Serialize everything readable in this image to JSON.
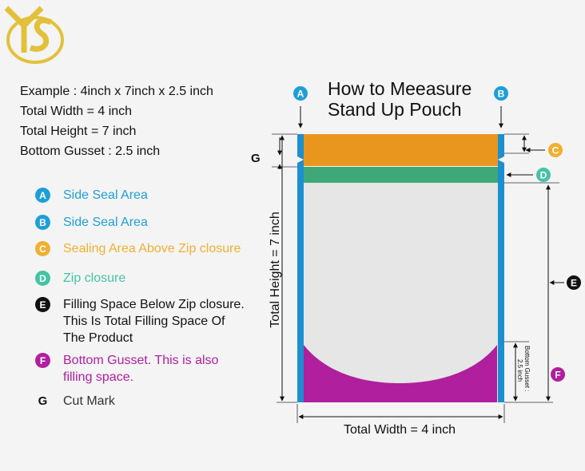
{
  "brand": {
    "logo_letters": "YS"
  },
  "title": "How to Meeasure\nStand Up Pouch",
  "example": {
    "lines": [
      "Example : 4inch x 7inch x 2.5 inch",
      "Total Width = 4 inch",
      "Total Height = 7 inch",
      "Bottom Gusset : 2.5 inch"
    ]
  },
  "legend": [
    {
      "letter": "A",
      "text": "Side Seal Area",
      "color": "#1e9fd6"
    },
    {
      "letter": "B",
      "text": "Side Seal Area",
      "color": "#1e9fd6"
    },
    {
      "letter": "C",
      "text": "Sealing Area Above Zip closure",
      "color": "#f0b030"
    },
    {
      "letter": "D",
      "text": "Zip closure",
      "color": "#44c4a4"
    },
    {
      "letter": "E",
      "text": "Filling Space Below Zip closure.\nThis Is Total Filling Space Of\nThe Product",
      "color": "#111111"
    },
    {
      "letter": "F",
      "text": "Bottom Gusset. This is also\nfilling space.",
      "color": "#b01f9e"
    },
    {
      "letter": "G",
      "text": "Cut Mark",
      "color": "#111111"
    }
  ],
  "diagram": {
    "total_height_label": "Total Height = 7 inch",
    "total_width_label": "Total Width = 4 inch",
    "gusset_label_line1": "Bottom Gusset :",
    "gusset_label_line2": "2.5 inch",
    "cut_mark_label": "G",
    "callouts": {
      "A": {
        "letter": "A",
        "color": "#1e9fd6"
      },
      "B": {
        "letter": "B",
        "color": "#1e9fd6"
      },
      "C": {
        "letter": "C",
        "color": "#f0b030"
      },
      "D": {
        "letter": "D",
        "color": "#44c4a4"
      },
      "E": {
        "letter": "E",
        "color": "#111111"
      },
      "F": {
        "letter": "F",
        "color": "#b01f9e"
      }
    },
    "colors": {
      "side_seal": "#1c8fd0",
      "top_seal": "#e8961e",
      "zip": "#3fa879",
      "body": "#e6e6e6",
      "gusset": "#b01f9e",
      "logo": "#e2c13a"
    }
  }
}
